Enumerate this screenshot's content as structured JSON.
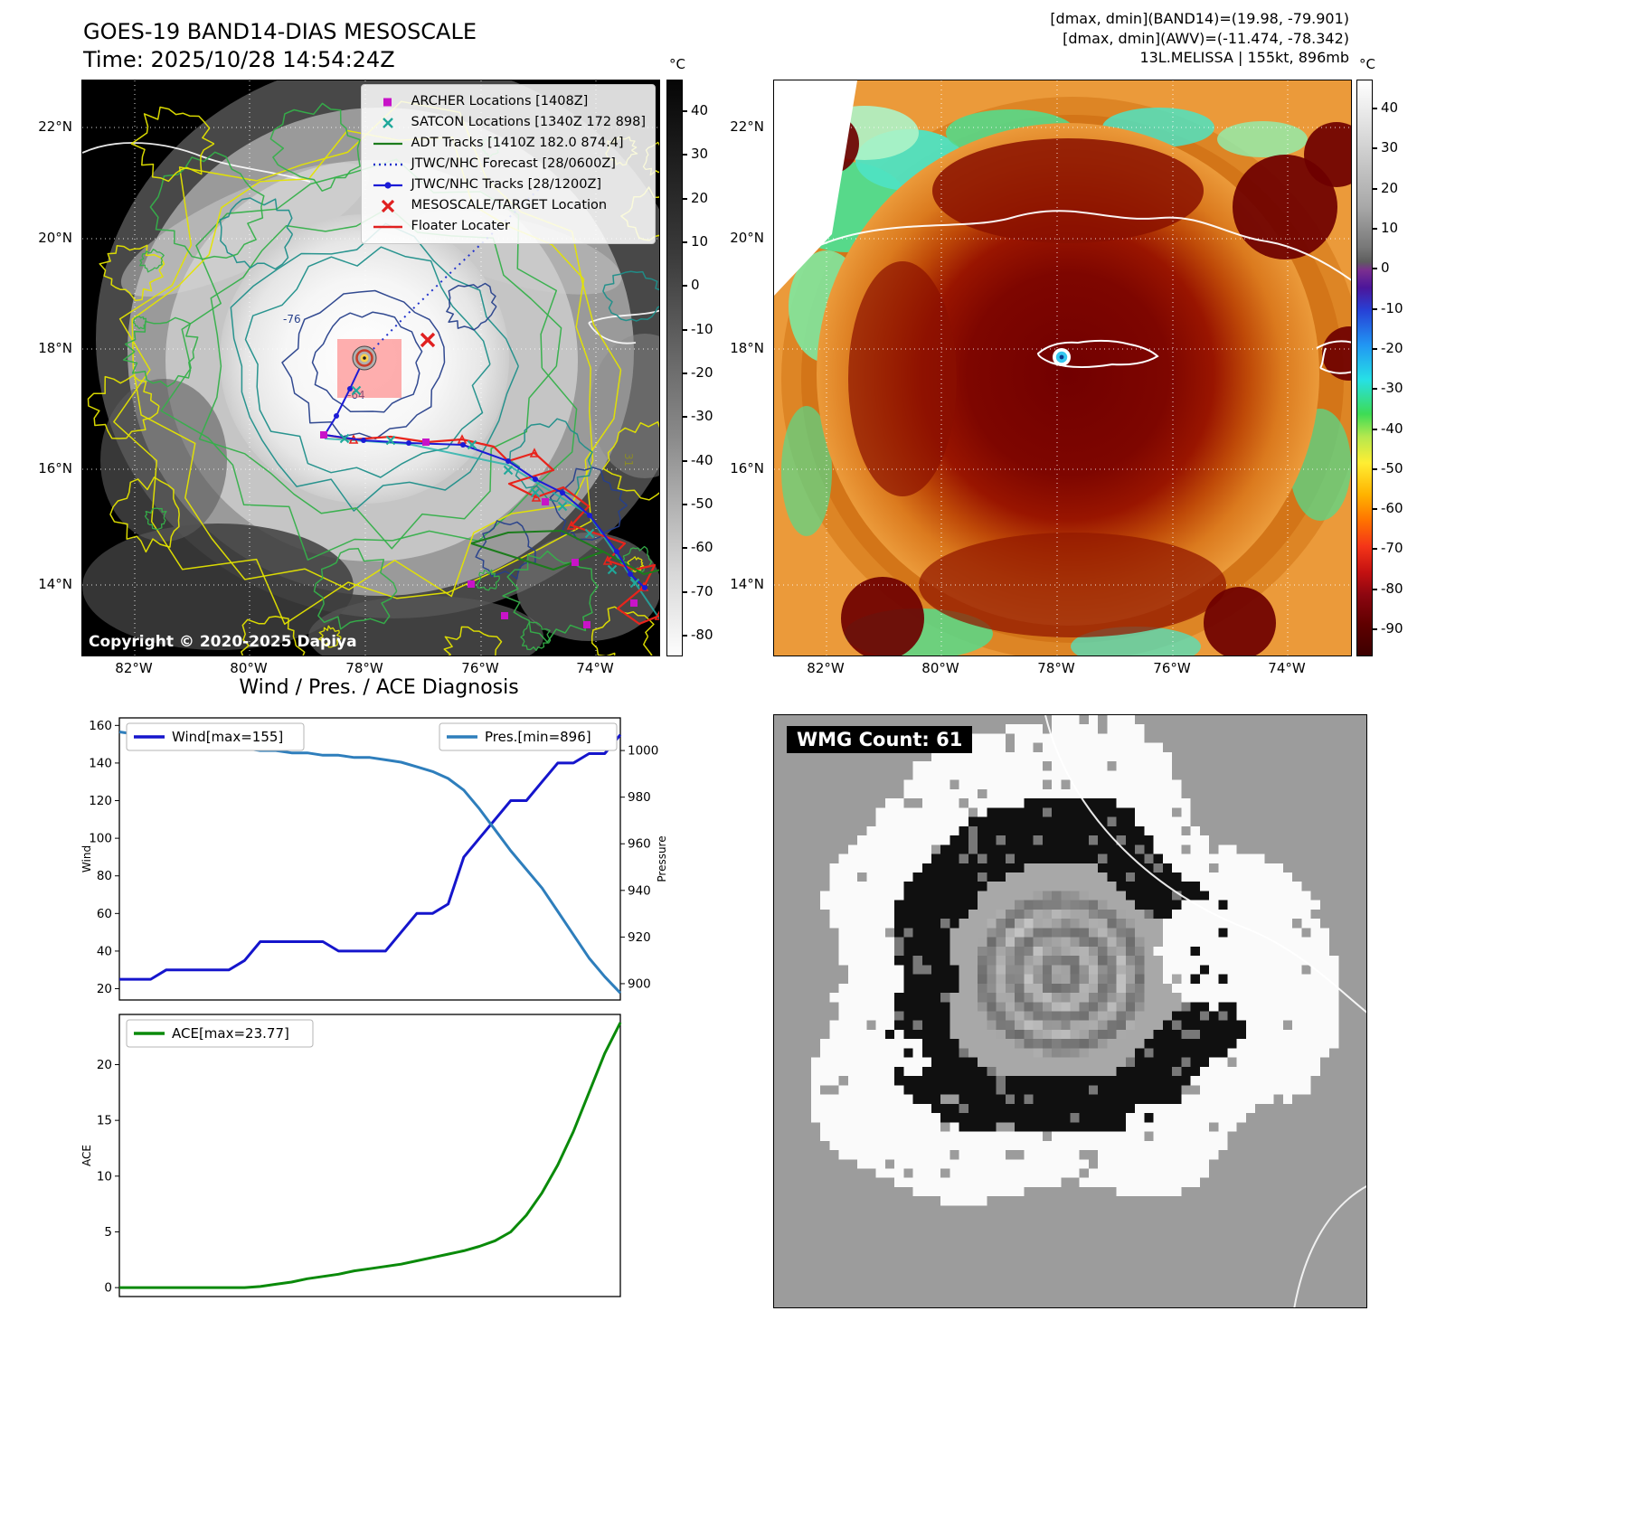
{
  "panel_ir": {
    "title": "GOES-19 BAND14-DIAS MESOSCALE",
    "time": "Time: 2025/10/28 14:54:24Z",
    "legend_items": [
      {
        "marker": "archer-square",
        "label": "ARCHER Locations [1408Z]"
      },
      {
        "marker": "satcon-x",
        "label": "SATCON Locations [1340Z 172 898]"
      },
      {
        "marker": "adt-line",
        "label": "ADT Tracks [1410Z 182.0 874.4]"
      },
      {
        "marker": "forecast-dotted",
        "label": "JTWC/NHC Forecast [28/0600Z]"
      },
      {
        "marker": "track-linedot",
        "label": "JTWC/NHC Tracks [28/1200Z]"
      },
      {
        "marker": "target-x",
        "label": "MESOSCALE/TARGET Location"
      },
      {
        "marker": "floater-line",
        "label": "Floater Locater"
      }
    ],
    "copyright": "Copyright © 2020-2025 Dapiya",
    "contour_labels": [
      "-76",
      "-64",
      "31"
    ],
    "lat_ticks": [
      "22°N",
      "20°N",
      "18°N",
      "16°N",
      "14°N"
    ],
    "lon_ticks": [
      "82°W",
      "80°W",
      "78°W",
      "76°W",
      "74°W"
    ],
    "colorbar": {
      "unit": "°C",
      "ticks": [
        "40",
        "30",
        "20",
        "10",
        "0",
        "-10",
        "-20",
        "-30",
        "-40",
        "-50",
        "-60",
        "-70",
        "-80"
      ]
    }
  },
  "panel_awv": {
    "header_lines": [
      "[dmax, dmin](BAND14)=(19.98, -79.901)",
      "[dmax, dmin](AWV)=(-11.474, -78.342)",
      "13L.MELISSA | 155kt, 896mb"
    ],
    "lat_ticks": [
      "22°N",
      "20°N",
      "18°N",
      "16°N",
      "14°N"
    ],
    "lon_ticks": [
      "82°W",
      "80°W",
      "78°W",
      "76°W",
      "74°W"
    ],
    "colorbar": {
      "unit": "°C",
      "ticks": [
        "40",
        "30",
        "20",
        "10",
        "0",
        "-10",
        "-20",
        "-30",
        "-40",
        "-50",
        "-60",
        "-70",
        "-80",
        "-90"
      ]
    }
  },
  "panel_wmg": {
    "count_label": "WMG Count: 61"
  },
  "diagnosis_title": "Wind / Pres. / ACE Diagnosis",
  "chart_data": [
    {
      "type": "line",
      "title": "Wind / Pres. / ACE Diagnosis",
      "ylabel_left": "Wind",
      "ylabel_right": "Pressure",
      "yticks_left": [
        20,
        40,
        60,
        80,
        100,
        120,
        140,
        160
      ],
      "yticks_right": [
        900,
        920,
        940,
        960,
        980,
        1000
      ],
      "ylim_left": [
        14,
        164
      ],
      "ylim_right": [
        893,
        1014
      ],
      "legend_position": "top-left / top-right",
      "series": [
        {
          "name": "Wind[max=155]",
          "color": "#1515cc",
          "axis": "left",
          "values": [
            25,
            25,
            25,
            30,
            30,
            30,
            30,
            30,
            35,
            45,
            45,
            45,
            45,
            45,
            40,
            40,
            40,
            40,
            50,
            60,
            60,
            65,
            90,
            100,
            110,
            120,
            120,
            130,
            140,
            140,
            145,
            145,
            155
          ]
        },
        {
          "name": "Pres.[min=896]",
          "color": "#2e7ebc",
          "axis": "right",
          "values": [
            1008,
            1007,
            1006,
            1005,
            1004,
            1004,
            1003,
            1002,
            1001,
            1000,
            1000,
            999,
            999,
            998,
            998,
            997,
            997,
            996,
            995,
            993,
            991,
            988,
            983,
            975,
            966,
            957,
            949,
            941,
            931,
            921,
            911,
            903,
            896
          ]
        }
      ]
    },
    {
      "type": "line",
      "ylabel": "ACE",
      "yticks": [
        0,
        5,
        10,
        15,
        20
      ],
      "ylim": [
        -0.8,
        24.5
      ],
      "series": [
        {
          "name": "ACE[max=23.77]",
          "color": "#0a8a0a",
          "values": [
            0,
            0,
            0,
            0,
            0,
            0,
            0,
            0,
            0,
            0.1,
            0.3,
            0.5,
            0.8,
            1.0,
            1.2,
            1.5,
            1.7,
            1.9,
            2.1,
            2.4,
            2.7,
            3.0,
            3.3,
            3.7,
            4.2,
            5.0,
            6.5,
            8.5,
            11,
            14,
            17.5,
            21,
            23.77
          ]
        }
      ]
    }
  ]
}
